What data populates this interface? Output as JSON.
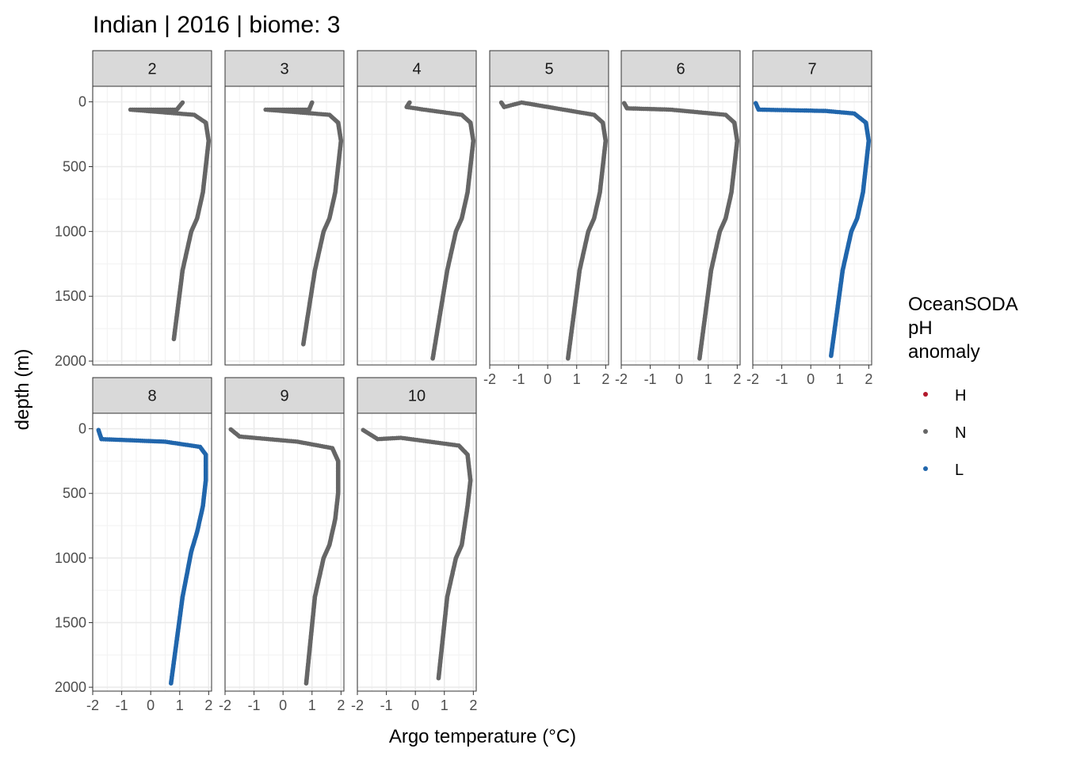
{
  "chart_data": {
    "type": "scatter",
    "title": "Indian | 2016 | biome: 3",
    "xlabel": "Argo temperature (°C)",
    "ylabel": "depth (m)",
    "xlim": [
      -2.0,
      2.1
    ],
    "ylim": [
      2030,
      -120
    ],
    "x_ticks": [
      -2,
      -1,
      0,
      1,
      2
    ],
    "y_ticks": [
      0,
      500,
      1000,
      1500,
      2000
    ],
    "x_tick_labels": [
      "-2",
      "-1",
      "0",
      "1",
      "2"
    ],
    "y_tick_labels": [
      "0",
      "500",
      "1000",
      "1500",
      "2000"
    ],
    "grid": true,
    "facet_by": "month",
    "legend": {
      "title": [
        "OceanSODA",
        "pH",
        "anomaly"
      ],
      "position": "right",
      "entries": [
        {
          "label": "H",
          "color": "#B2182B"
        },
        {
          "label": "N",
          "color": "#666666"
        },
        {
          "label": "L",
          "color": "#2166AC"
        }
      ]
    },
    "facets": [
      {
        "label": "2",
        "anomaly": "N",
        "profile": [
          [
            1.1,
            5
          ],
          [
            0.9,
            60
          ],
          [
            -0.7,
            60
          ],
          [
            1.5,
            100
          ],
          [
            1.9,
            160
          ],
          [
            2.0,
            300
          ],
          [
            1.9,
            500
          ],
          [
            1.8,
            700
          ],
          [
            1.6,
            900
          ],
          [
            1.4,
            1000
          ],
          [
            1.1,
            1300
          ],
          [
            0.8,
            1830
          ]
        ]
      },
      {
        "label": "3",
        "anomaly": "N",
        "profile": [
          [
            1.0,
            5
          ],
          [
            0.9,
            60
          ],
          [
            -0.6,
            60
          ],
          [
            1.6,
            100
          ],
          [
            1.9,
            160
          ],
          [
            2.0,
            300
          ],
          [
            1.9,
            500
          ],
          [
            1.8,
            700
          ],
          [
            1.6,
            900
          ],
          [
            1.4,
            1000
          ],
          [
            1.1,
            1300
          ],
          [
            0.7,
            1870
          ]
        ]
      },
      {
        "label": "4",
        "anomaly": "N",
        "profile": [
          [
            -0.2,
            5
          ],
          [
            -0.3,
            40
          ],
          [
            0.3,
            60
          ],
          [
            1.6,
            100
          ],
          [
            1.9,
            160
          ],
          [
            2.0,
            300
          ],
          [
            1.9,
            500
          ],
          [
            1.8,
            700
          ],
          [
            1.6,
            900
          ],
          [
            1.4,
            1000
          ],
          [
            1.1,
            1300
          ],
          [
            0.6,
            1980
          ]
        ]
      },
      {
        "label": "5",
        "anomaly": "N",
        "profile": [
          [
            -1.6,
            5
          ],
          [
            -1.5,
            40
          ],
          [
            -0.9,
            5
          ],
          [
            1.6,
            100
          ],
          [
            1.9,
            160
          ],
          [
            2.0,
            300
          ],
          [
            1.9,
            500
          ],
          [
            1.8,
            700
          ],
          [
            1.6,
            900
          ],
          [
            1.4,
            1000
          ],
          [
            1.1,
            1300
          ],
          [
            0.7,
            1980
          ]
        ]
      },
      {
        "label": "6",
        "anomaly": "N",
        "profile": [
          [
            -1.9,
            10
          ],
          [
            -1.8,
            50
          ],
          [
            -0.3,
            60
          ],
          [
            1.6,
            100
          ],
          [
            1.9,
            160
          ],
          [
            2.0,
            300
          ],
          [
            1.9,
            500
          ],
          [
            1.8,
            700
          ],
          [
            1.6,
            900
          ],
          [
            1.4,
            1000
          ],
          [
            1.1,
            1300
          ],
          [
            0.7,
            1980
          ]
        ]
      },
      {
        "label": "7",
        "anomaly": "L",
        "profile": [
          [
            -1.9,
            10
          ],
          [
            -1.8,
            60
          ],
          [
            0.5,
            70
          ],
          [
            1.5,
            90
          ],
          [
            1.9,
            160
          ],
          [
            2.0,
            300
          ],
          [
            1.9,
            500
          ],
          [
            1.8,
            700
          ],
          [
            1.6,
            900
          ],
          [
            1.4,
            1000
          ],
          [
            1.1,
            1300
          ],
          [
            0.7,
            1960
          ]
        ]
      },
      {
        "label": "8",
        "anomaly": "L",
        "profile": [
          [
            -1.8,
            10
          ],
          [
            -1.7,
            80
          ],
          [
            0.5,
            100
          ],
          [
            1.7,
            140
          ],
          [
            1.9,
            200
          ],
          [
            1.9,
            400
          ],
          [
            1.8,
            600
          ],
          [
            1.6,
            800
          ],
          [
            1.4,
            950
          ],
          [
            1.1,
            1300
          ],
          [
            0.7,
            1970
          ]
        ]
      },
      {
        "label": "9",
        "anomaly": "N",
        "profile": [
          [
            -1.8,
            5
          ],
          [
            -1.5,
            60
          ],
          [
            0.5,
            100
          ],
          [
            1.7,
            150
          ],
          [
            1.9,
            250
          ],
          [
            1.9,
            500
          ],
          [
            1.8,
            700
          ],
          [
            1.6,
            900
          ],
          [
            1.4,
            1000
          ],
          [
            1.1,
            1300
          ],
          [
            0.8,
            1970
          ]
        ]
      },
      {
        "label": "10",
        "anomaly": "N",
        "profile": [
          [
            -1.8,
            10
          ],
          [
            -1.3,
            80
          ],
          [
            -0.5,
            70
          ],
          [
            1.5,
            130
          ],
          [
            1.8,
            200
          ],
          [
            1.9,
            400
          ],
          [
            1.8,
            600
          ],
          [
            1.6,
            900
          ],
          [
            1.4,
            1000
          ],
          [
            1.1,
            1300
          ],
          [
            0.8,
            1930
          ]
        ]
      }
    ]
  }
}
